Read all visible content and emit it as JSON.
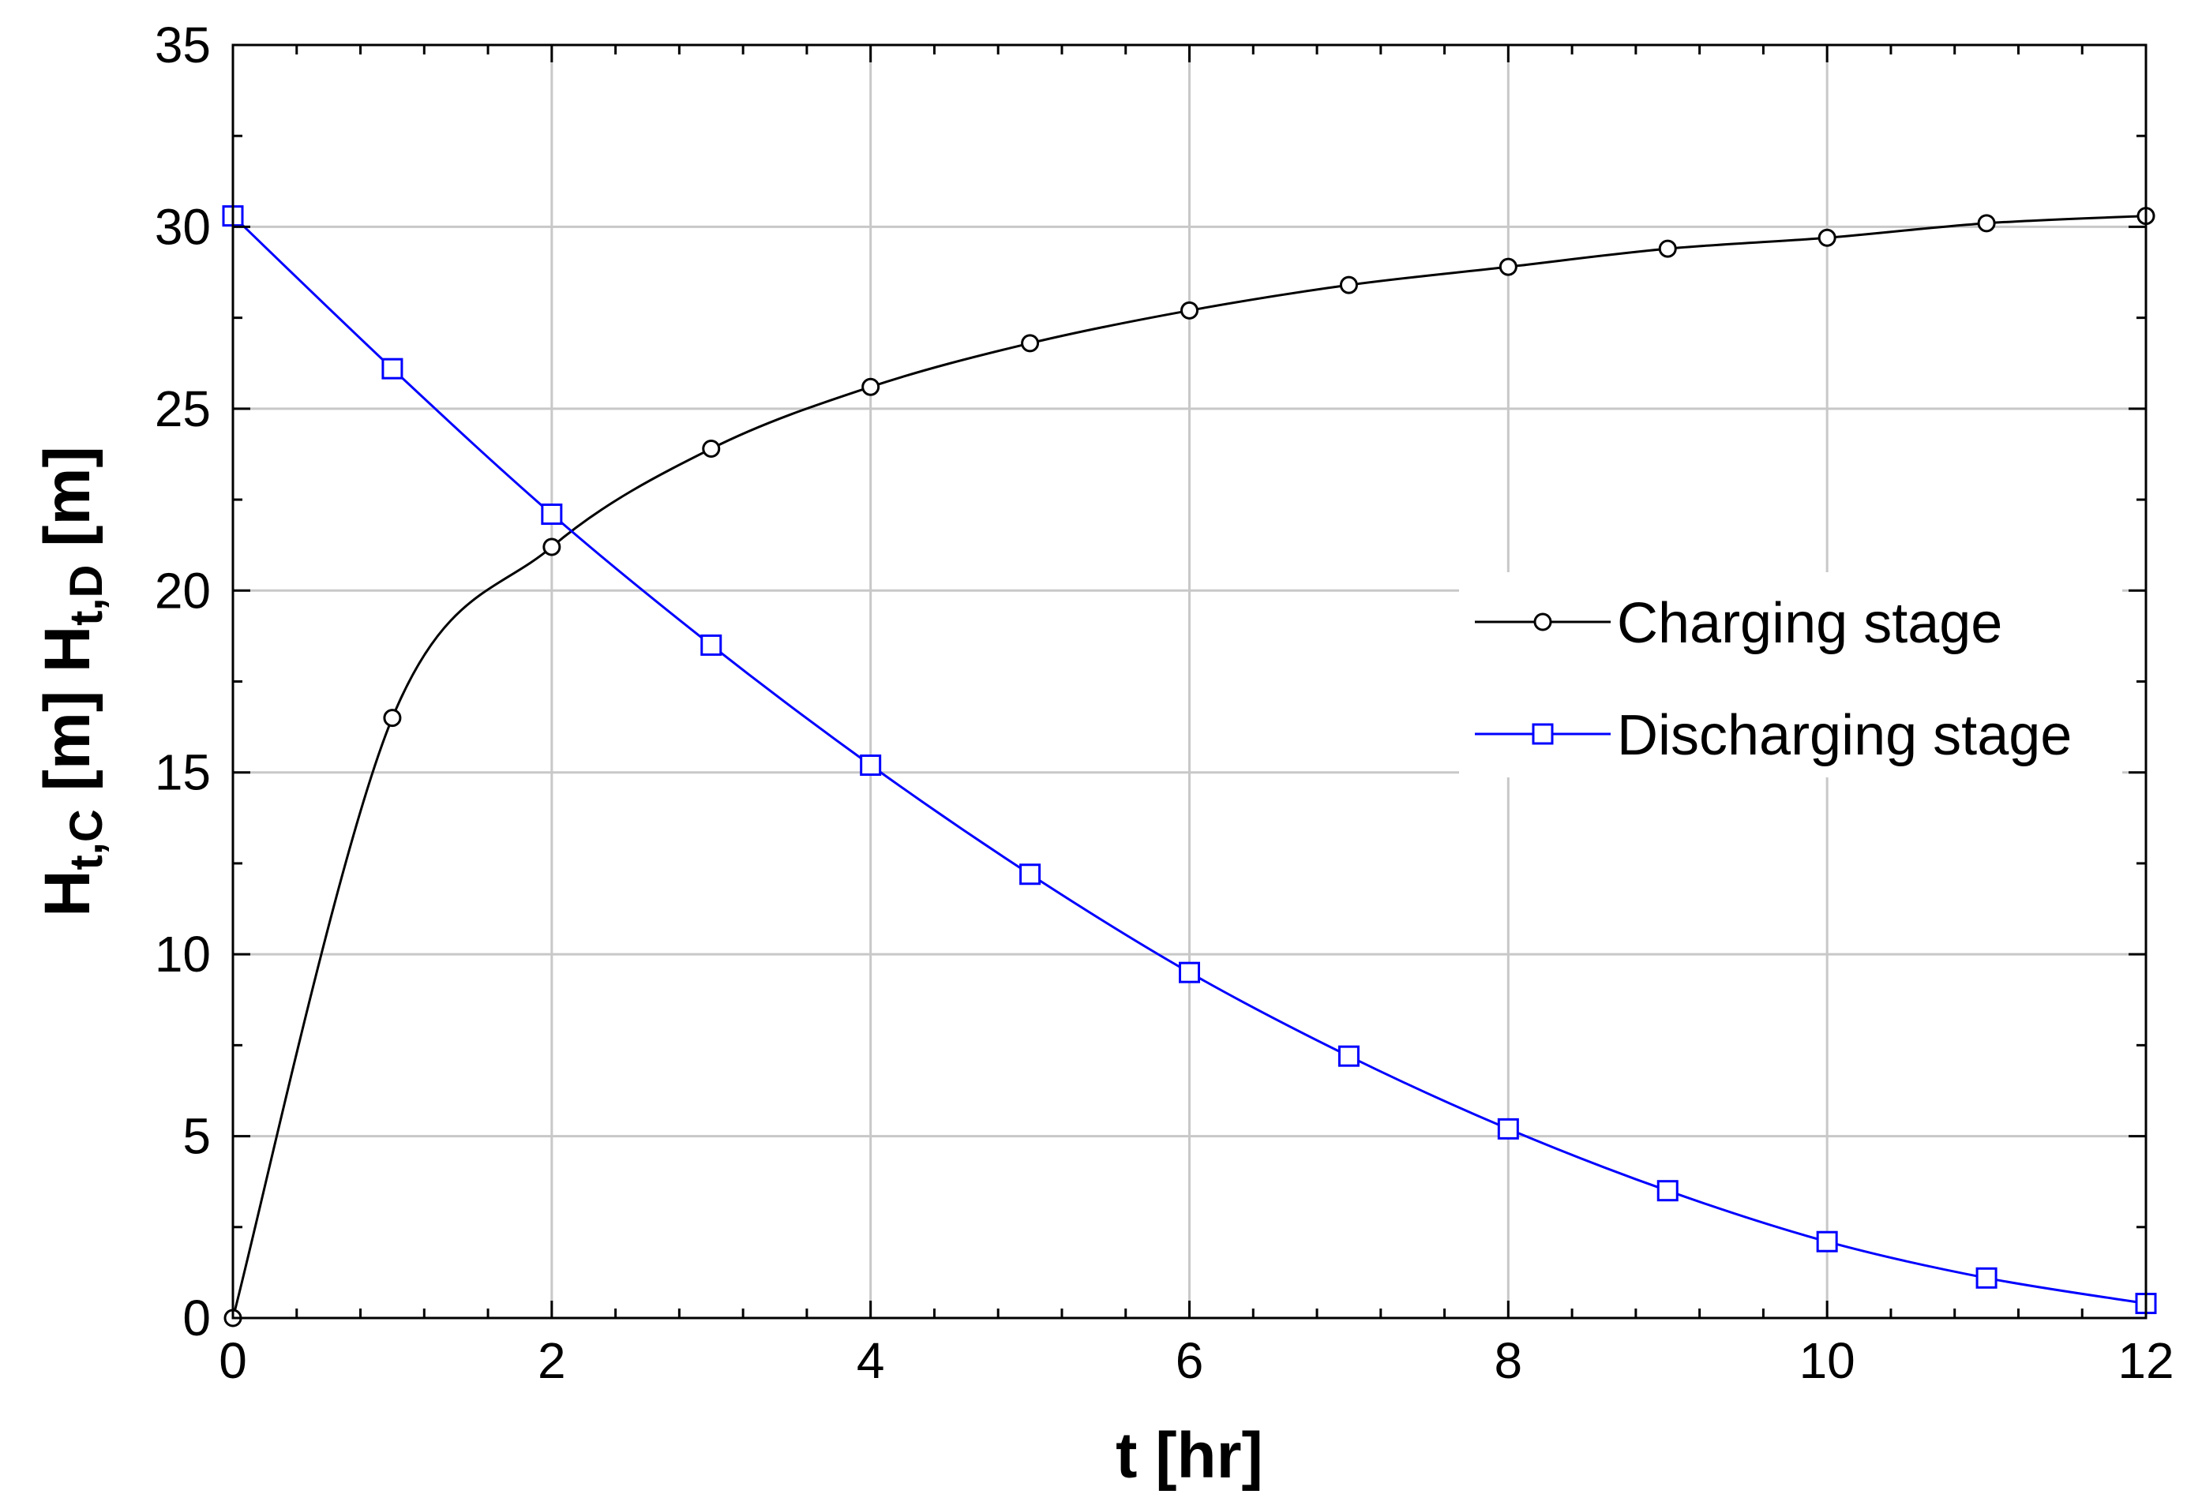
{
  "chart_data": {
    "type": "line",
    "title": "",
    "xlabel": "t [hr]",
    "ylabel": {
      "parts": [
        {
          "text": "H",
          "sub": false
        },
        {
          "text": "t,C",
          "sub": true
        },
        {
          "text": " [m] H",
          "sub": false
        },
        {
          "text": "t,D",
          "sub": true
        },
        {
          "text": " [m]",
          "sub": false
        }
      ]
    },
    "xlim": [
      0,
      12
    ],
    "ylim": [
      0,
      35
    ],
    "x_major_ticks": [
      0,
      2,
      4,
      6,
      8,
      10,
      12
    ],
    "x_tick_labels": [
      "0",
      "2",
      "4",
      "6",
      "8",
      "10",
      "12"
    ],
    "x_minor_step": 0.4,
    "y_major_ticks": [
      0,
      5,
      10,
      15,
      20,
      25,
      30,
      35
    ],
    "y_tick_labels": [
      "0",
      "5",
      "10",
      "15",
      "20",
      "25",
      "30",
      "35"
    ],
    "y_minor_step": 2.5,
    "grid": true,
    "legend_position": "right-middle",
    "series": [
      {
        "name": "Charging stage",
        "color": "#000000",
        "marker": "circle",
        "x": [
          0,
          1,
          2,
          3,
          4,
          5,
          6,
          7,
          8,
          9,
          10,
          11,
          12
        ],
        "values": [
          0,
          16.5,
          21.2,
          23.9,
          25.6,
          26.8,
          27.7,
          28.4,
          28.9,
          29.4,
          29.7,
          30.1,
          30.3
        ]
      },
      {
        "name": "Discharging stage",
        "color": "#0000ff",
        "marker": "square",
        "x": [
          0,
          1,
          2,
          3,
          4,
          5,
          6,
          7,
          8,
          9,
          10,
          11,
          12
        ],
        "values": [
          30.3,
          26.1,
          22.1,
          18.5,
          15.2,
          12.2,
          9.5,
          7.2,
          5.2,
          3.5,
          2.1,
          1.1,
          0.4
        ]
      }
    ]
  }
}
